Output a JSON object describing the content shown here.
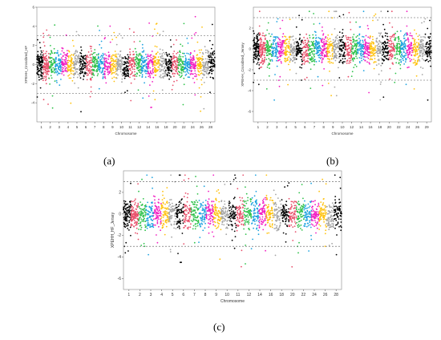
{
  "chart_data": [
    {
      "type": "scatter",
      "caption": "(a)",
      "xlabel": "Chromosome",
      "ylabel": "XPEHH_Crossbred_HF",
      "ylim": [
        -6,
        6
      ],
      "yticks": [
        "-4",
        "-2",
        "0",
        "2",
        "4",
        "6"
      ],
      "xticks": [
        "1",
        "2",
        "3",
        "4",
        "5",
        "6",
        "7",
        "8",
        "9",
        "10",
        "11",
        "12",
        "14",
        "16",
        "18",
        "20",
        "22",
        "24",
        "26",
        "28"
      ],
      "thresholds": [
        3,
        -3
      ],
      "grid": false
    },
    {
      "type": "scatter",
      "caption": "(b)",
      "xlabel": "Chromosome",
      "ylabel": "XPEHH_Crossbred_Jersey",
      "ylim": [
        -7,
        4
      ],
      "yticks": [
        "-6",
        "-4",
        "-2",
        "0",
        "2"
      ],
      "xticks": [
        "1",
        "2",
        "3",
        "4",
        "5",
        "6",
        "7",
        "8",
        "9",
        "10",
        "12",
        "14",
        "16",
        "18",
        "20",
        "22",
        "24",
        "26",
        "29"
      ],
      "thresholds": [
        3,
        -3
      ],
      "grid": false
    },
    {
      "type": "scatter",
      "caption": "(c)",
      "xlabel": "Chromosome",
      "ylabel": "XPEHH_HF_Jersey",
      "ylim": [
        -7,
        4
      ],
      "yticks": [
        "-6",
        "-4",
        "-2",
        "0",
        "2"
      ],
      "xticks": [
        "1",
        "2",
        "3",
        "4",
        "5",
        "6",
        "7",
        "8",
        "9",
        "10",
        "11",
        "12",
        "14",
        "16",
        "18",
        "20",
        "22",
        "24",
        "26",
        "28"
      ],
      "thresholds": [
        3,
        -3
      ],
      "grid": false
    }
  ],
  "colors": [
    "#000000",
    "#e8506b",
    "#2ec24a",
    "#1fa3e0",
    "#f21ec3",
    "#ffc20e",
    "#a5a5a5"
  ]
}
